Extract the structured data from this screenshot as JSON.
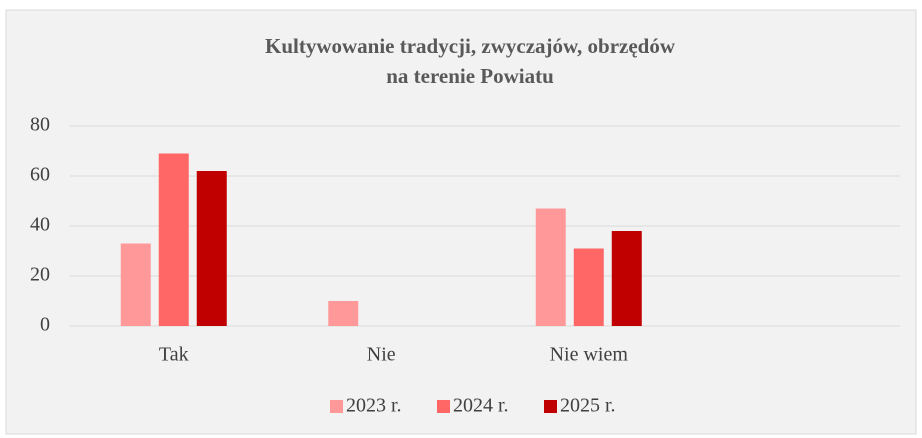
{
  "chart_data": {
    "type": "bar",
    "title": [
      "Kultywowanie tradycji, zwyczajów, obrzędów",
      "na terenie Powiatu"
    ],
    "categories": [
      "Tak",
      "Nie",
      "Nie wiem",
      null
    ],
    "series": [
      {
        "name": "2023 r.",
        "color": "#ff9999",
        "values": [
          33,
          10,
          47,
          null
        ]
      },
      {
        "name": "2024 r.",
        "color": "#ff6666",
        "values": [
          69,
          0,
          31,
          null
        ]
      },
      {
        "name": "2025 r.",
        "color": "#c00000",
        "values": [
          62,
          0,
          38,
          null
        ]
      }
    ],
    "ylim": [
      0,
      80
    ],
    "yticks": [
      0,
      20,
      40,
      60,
      80
    ],
    "grid": true,
    "legend": "bottom"
  }
}
